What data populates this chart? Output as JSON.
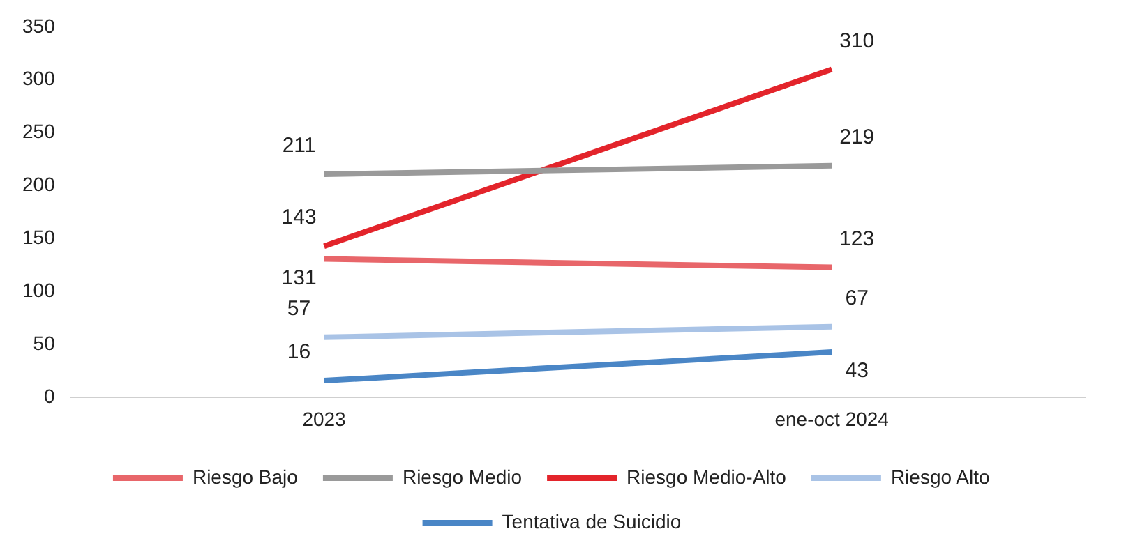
{
  "chart_data": {
    "type": "line",
    "categories": [
      "2023",
      "ene-oct 2024"
    ],
    "series": [
      {
        "name": "Riesgo Bajo",
        "color": "#e8666a",
        "values": [
          131,
          123
        ]
      },
      {
        "name": "Riesgo Medio",
        "color": "#9a9a9a",
        "values": [
          211,
          219
        ]
      },
      {
        "name": "Riesgo Medio-Alto",
        "color": "#e3242b",
        "values": [
          143,
          310
        ]
      },
      {
        "name": "Riesgo Alto",
        "color": "#a9c3e6",
        "values": [
          57,
          67
        ]
      },
      {
        "name": "Tentativa de Suicidio",
        "color": "#4a86c6",
        "values": [
          16,
          43
        ]
      }
    ],
    "ylim": [
      0,
      350
    ],
    "yticks": [
      0,
      50,
      100,
      150,
      200,
      250,
      300,
      350
    ],
    "grid": false,
    "legend": "bottom",
    "marker": "none",
    "line_style": "solid",
    "data_labels": true
  }
}
